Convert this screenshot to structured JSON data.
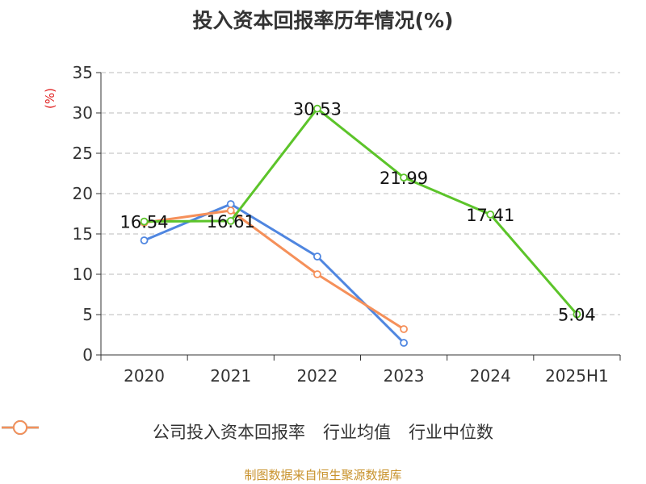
{
  "title": "投入资本回报率历年情况(%)",
  "unit_label": "(%)",
  "source": "制图数据来自恒生聚源数据库",
  "colors": {
    "company": "#5cc42a",
    "industry_avg": "#4f86e0",
    "industry_median": "#f5905a",
    "grid": "#bbbbbb",
    "axis": "#333333",
    "unit": "#e02020"
  },
  "chart_data": {
    "type": "line",
    "title": "投入资本回报率历年情况(%)",
    "ylabel": "(%)",
    "xlabel": "",
    "categories": [
      "2020",
      "2021",
      "2022",
      "2023",
      "2024",
      "2025H1"
    ],
    "yticks": [
      "0",
      "5",
      "10",
      "15",
      "20",
      "25",
      "30",
      "35"
    ],
    "ylim": [
      0,
      35
    ],
    "grid": "horizontal dashed",
    "legend_position": "bottom",
    "series": [
      {
        "name": "公司投入资本回报率",
        "color": "#5cc42a",
        "values": [
          16.54,
          16.61,
          30.53,
          21.99,
          17.41,
          5.04
        ],
        "labels": [
          "16.54",
          "16.61",
          "30.53",
          "21.99",
          "17.41",
          "5.04"
        ]
      },
      {
        "name": "行业均值",
        "color": "#4f86e0",
        "values": [
          14.2,
          18.7,
          12.2,
          1.5,
          null,
          null
        ]
      },
      {
        "name": "行业中位数",
        "color": "#f5905a",
        "values": [
          16.4,
          17.9,
          10.0,
          3.2,
          null,
          null
        ]
      }
    ]
  }
}
